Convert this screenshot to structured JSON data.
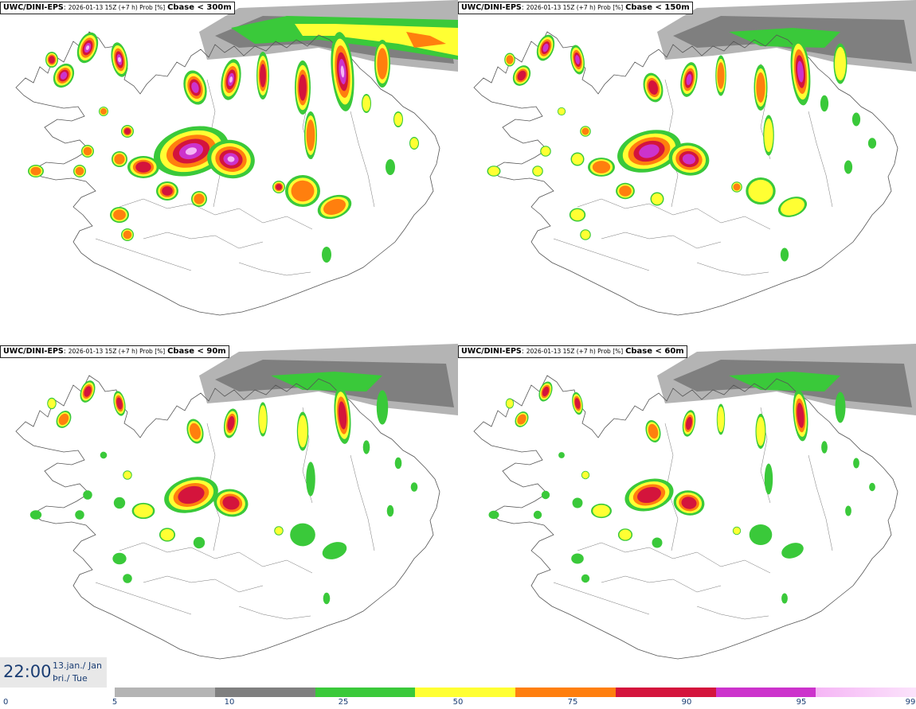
{
  "panels": [
    {
      "source": "UWC/DINI-EPS",
      "run": "2026-01-13 15Z (+7 h) Prob [%]",
      "threshold": "Cbase < 300m"
    },
    {
      "source": "UWC/DINI-EPS",
      "run": "2026-01-13 15Z (+7 h) Prob [%]",
      "threshold": "Cbase < 150m"
    },
    {
      "source": "UWC/DINI-EPS",
      "run": "2026-01-13 15Z (+7 h) Prob [%]",
      "threshold": "Cbase < 90m"
    },
    {
      "source": "UWC/DINI-EPS",
      "run": "2026-01-13 15Z (+7 h) Prob [%]",
      "threshold": "Cbase < 60m"
    }
  ],
  "valid_time": {
    "time": "22:00",
    "date": "13.jan./ Jan",
    "weekday": "Þri./ Tue"
  },
  "colorbar": {
    "ticks": [
      "0",
      "5",
      "10",
      "25",
      "50",
      "75",
      "90",
      "95",
      "99"
    ],
    "colors": [
      "#b4b4b4",
      "#7f7f7f",
      "#3ac93a",
      "#ffff33",
      "#ff7f0e",
      "#d4143c",
      "#cc33cc",
      "#f5b5f5"
    ]
  },
  "map_colors": {
    "coast": "#555555",
    "gray_light": "#b4b4b4",
    "gray_dark": "#7f7f7f",
    "green": "#3ac93a",
    "yellow": "#ffff33",
    "orange": "#ff7f0e",
    "red": "#d4143c",
    "magenta": "#cc33cc",
    "pink": "#f5b5f5"
  }
}
